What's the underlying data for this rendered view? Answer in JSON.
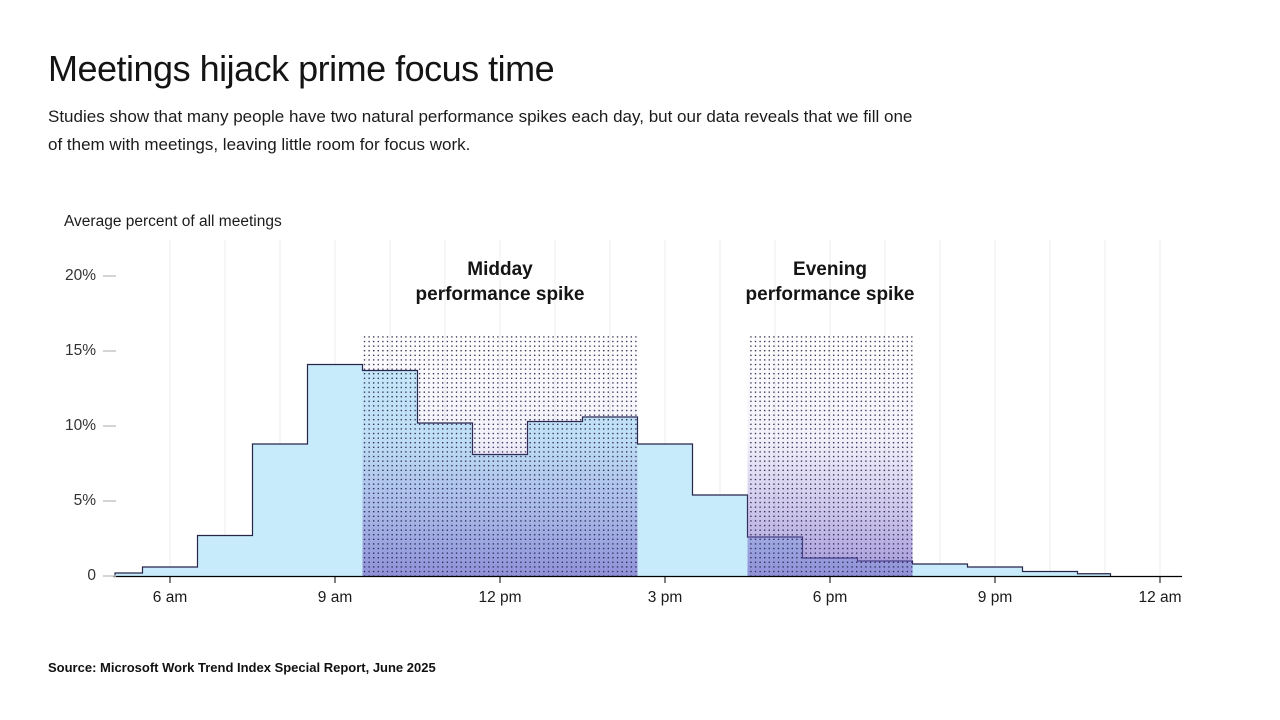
{
  "page": {
    "title": "Meetings hijack prime focus time",
    "subtitle_lines": [
      "Studies show that many people have two natural performance spikes each day, but our data reveals that we fill one",
      "of them with meetings, leaving little room for focus work."
    ],
    "source": "Source: Microsoft Work Trend Index Special Report, June 2025"
  },
  "chart_data": {
    "type": "area",
    "step": true,
    "title": "Meetings hijack prime focus time",
    "ylabel": "Average percent of all meetings",
    "xlabel": "",
    "ylim": [
      0,
      21
    ],
    "grid": "vertical-hourly",
    "legend": "none",
    "x_ticks": [
      {
        "hour": 6,
        "label": "6 am"
      },
      {
        "hour": 9,
        "label": "9 am"
      },
      {
        "hour": 12,
        "label": "12 pm"
      },
      {
        "hour": 15,
        "label": "3 pm"
      },
      {
        "hour": 18,
        "label": "6 pm"
      },
      {
        "hour": 21,
        "label": "9 pm"
      },
      {
        "hour": 24,
        "label": "12 am"
      }
    ],
    "y_ticks": [
      {
        "value": 0,
        "label": "0"
      },
      {
        "value": 5,
        "label": "5%"
      },
      {
        "value": 10,
        "label": "10%"
      },
      {
        "value": 15,
        "label": "15%"
      },
      {
        "value": 20,
        "label": "20%"
      }
    ],
    "bins": [
      {
        "start": 5.0,
        "end": 5.5,
        "value": 0.2
      },
      {
        "start": 5.5,
        "end": 6.5,
        "value": 0.6
      },
      {
        "start": 6.5,
        "end": 7.5,
        "value": 2.7
      },
      {
        "start": 7.5,
        "end": 8.5,
        "value": 8.8
      },
      {
        "start": 8.5,
        "end": 9.5,
        "value": 14.1
      },
      {
        "start": 9.5,
        "end": 10.5,
        "value": 13.7
      },
      {
        "start": 10.5,
        "end": 11.5,
        "value": 10.2
      },
      {
        "start": 11.5,
        "end": 12.5,
        "value": 8.1
      },
      {
        "start": 12.5,
        "end": 13.5,
        "value": 10.3
      },
      {
        "start": 13.5,
        "end": 14.5,
        "value": 10.6
      },
      {
        "start": 14.5,
        "end": 15.5,
        "value": 8.8
      },
      {
        "start": 15.5,
        "end": 16.5,
        "value": 5.4
      },
      {
        "start": 16.5,
        "end": 17.5,
        "value": 2.6
      },
      {
        "start": 17.5,
        "end": 18.5,
        "value": 1.2
      },
      {
        "start": 18.5,
        "end": 19.5,
        "value": 1.0
      },
      {
        "start": 19.5,
        "end": 20.5,
        "value": 0.8
      },
      {
        "start": 20.5,
        "end": 21.5,
        "value": 0.6
      },
      {
        "start": 21.5,
        "end": 22.5,
        "value": 0.3
      },
      {
        "start": 22.5,
        "end": 23.1,
        "value": 0.15
      }
    ],
    "regions": [
      {
        "name": "midday",
        "start": 9.5,
        "end": 14.5,
        "top": 16,
        "label_line1": "Midday",
        "label_line2": "performance spike"
      },
      {
        "name": "evening",
        "start": 16.5,
        "end": 19.5,
        "top": 16,
        "label_line1": "Evening",
        "label_line2": "performance spike"
      }
    ],
    "colors": {
      "area_fill": "#c7ebfa",
      "area_stroke": "#26254a",
      "grid": "#ececec",
      "axis": "#000000",
      "y_tick_dash": "#c6c6c6",
      "region_dot": "#23224a",
      "region_purple": "#6f5bc4"
    }
  }
}
